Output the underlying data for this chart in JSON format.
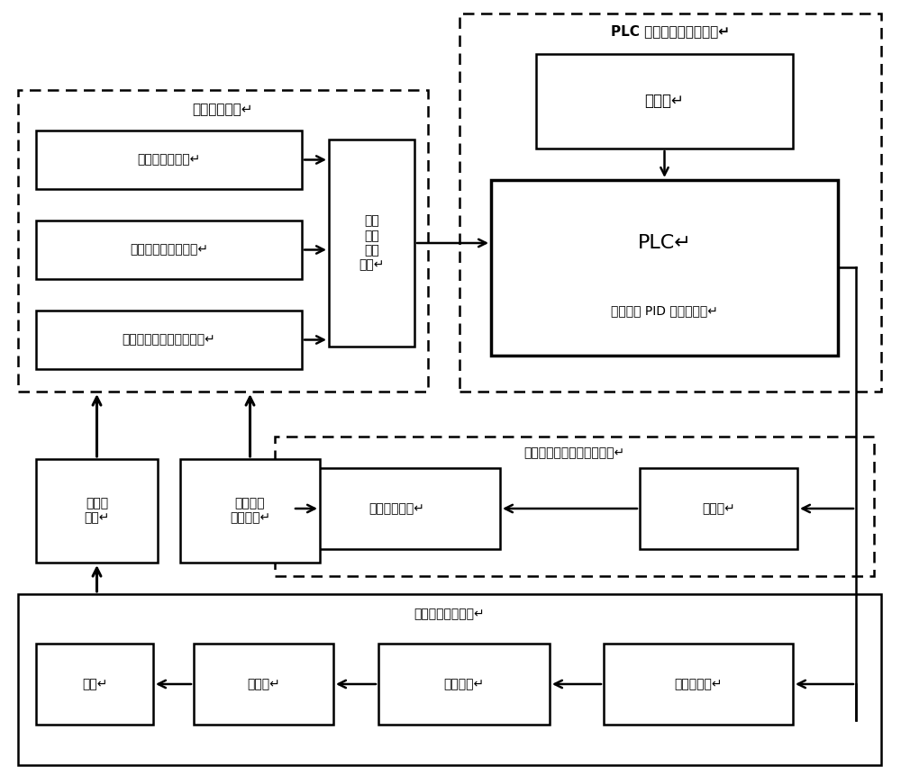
{
  "bg_color": "#ffffff",
  "text_color": "#000000",
  "box_facecolor": "#ffffff",
  "box_edgecolor": "#000000",
  "signal_module_label": "信号采集模块↵",
  "plc_module_label": "PLC 自动检测化控制模块↵",
  "drive_module_label": "驱动滚筒电机速度调节模块↵",
  "tension_module_label": "张力自动调整装置↵",
  "box_sensor1": "张力检测传感器↵",
  "box_sensor2": "驱动滚筒光电编码器↵",
  "box_sensor3": "输送带旋转式速度传感器↵",
  "box_collect": "信号\n采集\n处理\n电路↵",
  "box_touch": "触摸屏↵",
  "box_plc_l1": "PLC↵",
  "box_plc_l2": "（含模糊 PID 控制系统）↵",
  "box_tension_out": "输送带\n张力↵",
  "box_motor_speed": "驱动滚筒\n电机速度↵",
  "box_drive_motor": "驱动滚筒电机↵",
  "box_freq": "变频器↵",
  "box_screw": "丝杠↵",
  "box_reducer": "减速箱↵",
  "box_servo_motor": "伺服电机↵",
  "box_servo_driver": "伺服驱动器↵",
  "font_cjk": [
    "Noto Sans CJK SC",
    "WenQuanYi Micro Hei",
    "AR PL UMing CN",
    "SimHei",
    "DejaVu Sans"
  ]
}
